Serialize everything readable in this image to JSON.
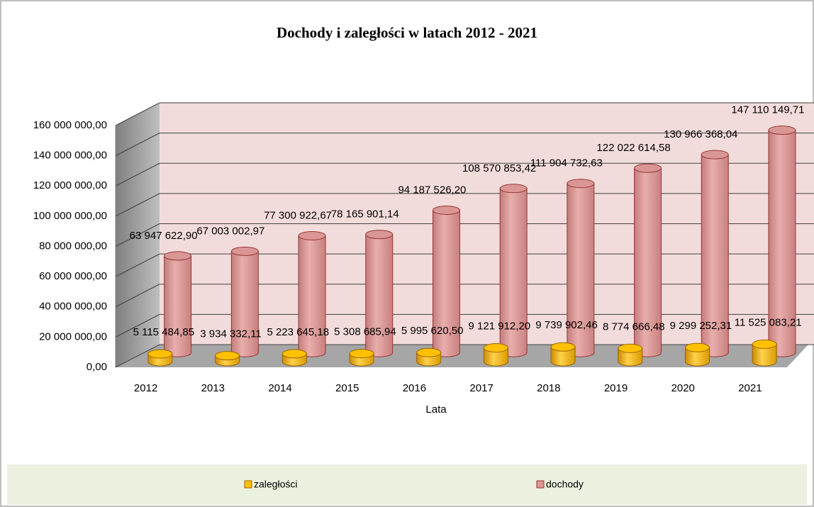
{
  "chart_data": {
    "type": "cylinder3d",
    "title": "Dochody i zaległości w latach 2012 - 2021",
    "x_label": "Lata",
    "categories": [
      "2012",
      "2013",
      "2014",
      "2015",
      "2016",
      "2017",
      "2018",
      "2019",
      "2020",
      "2021"
    ],
    "series": [
      {
        "name": "zaległości",
        "color": "#ffc000",
        "values": [
          5115484.85,
          3934332.11,
          5223645.18,
          5308685.94,
          5995620.5,
          9121912.2,
          9739902.46,
          8774666.48,
          9299252.31,
          11525083.21
        ],
        "value_labels": [
          "5 115 484,85",
          "3 934 332,11",
          "5 223 645,18",
          "5 308 685,94",
          "5 995 620,50",
          "9 121 912,20",
          "9 739 902,46",
          "8 774 666,48",
          "9 299 252,31",
          "11 525 083,21"
        ]
      },
      {
        "name": "dochody",
        "color": "#d99694",
        "values": [
          63947622.9,
          67003002.97,
          77300922.67,
          78165901.14,
          94187526.2,
          108570853.42,
          111904732.63,
          122022614.58,
          130966368.04,
          147110149.71
        ],
        "value_labels": [
          "63 947 622,90",
          "67 003 002,97",
          "77 300 922,67",
          "78 165 901,14",
          "94 187 526,20",
          "108 570 853,42",
          "111 904 732,63",
          "122 022 614,58",
          "130 966 368,04",
          "147 110 149,71"
        ]
      }
    ],
    "ylim": [
      0,
      160000000
    ],
    "yticks": [
      {
        "value": 0,
        "label": "0,00"
      },
      {
        "value": 20000000,
        "label": "20 000 000,00"
      },
      {
        "value": 40000000,
        "label": "40 000 000,00"
      },
      {
        "value": 60000000,
        "label": "60 000 000,00"
      },
      {
        "value": 80000000,
        "label": "80 000 000,00"
      },
      {
        "value": 100000000,
        "label": "100 000 000,00"
      },
      {
        "value": 120000000,
        "label": "120 000 000,00"
      },
      {
        "value": 140000000,
        "label": "140 000 000,00"
      },
      {
        "value": 160000000,
        "label": "160 000 000,00"
      }
    ],
    "grid": true,
    "legend": "bottom"
  }
}
